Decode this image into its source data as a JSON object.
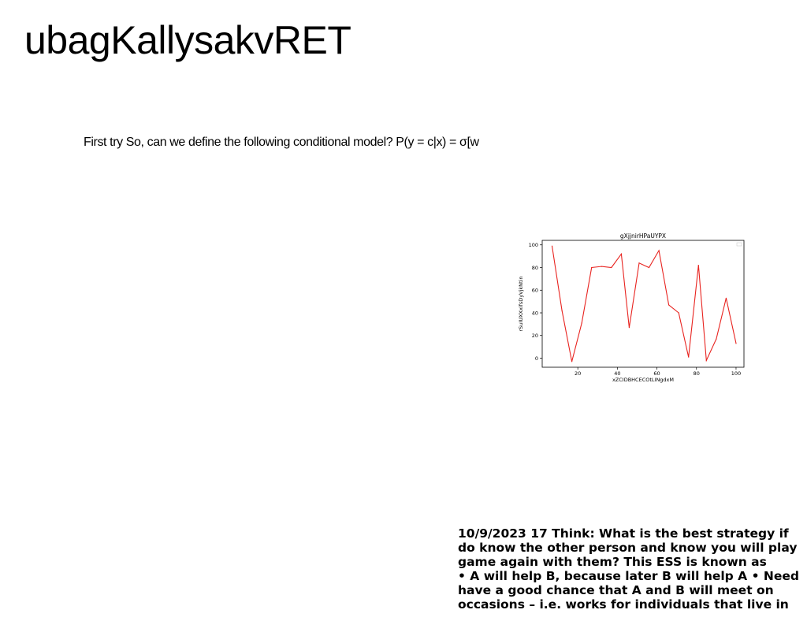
{
  "page": {
    "title": "ubagKallysakvRET",
    "subtitle": "First try So, can we define the following conditional model? P(y = c|x) = σ[w"
  },
  "notes": {
    "lines": [
      "10/9/2023 17 Think: What is the best strategy if",
      "do know the other person and know you will play",
      "game again with them? This ESS is known as",
      "• A will help B, because later B will help A • Need",
      "have a good chance that A and B will meet on",
      "occasions – i.e. works for individuals that live in"
    ]
  },
  "chart_data": {
    "type": "line",
    "title": "gXjjnirHPaUYPX",
    "xlabel": "xZCIDBHCECOtLINgdxM",
    "ylabel": "rSuIUXXxifsDyVjkNtin",
    "x": [
      7,
      12,
      17,
      22,
      27,
      32,
      37,
      42,
      46,
      51,
      56,
      61,
      66,
      71,
      76,
      81,
      85,
      90,
      95,
      100
    ],
    "series": [
      {
        "color": "#e8231f",
        "values": [
          99,
          42,
          -3,
          31,
          80,
          81,
          80,
          92,
          27,
          84,
          80,
          95,
          47,
          40,
          1,
          82,
          -2,
          17,
          53,
          13
        ]
      }
    ],
    "xlim": [
      2,
      104
    ],
    "ylim": [
      -8,
      104
    ],
    "xticks": [
      20,
      40,
      60,
      80,
      100
    ],
    "yticks": [
      0,
      20,
      40,
      60,
      80,
      100
    ],
    "grid": false,
    "legend": "top-right"
  }
}
